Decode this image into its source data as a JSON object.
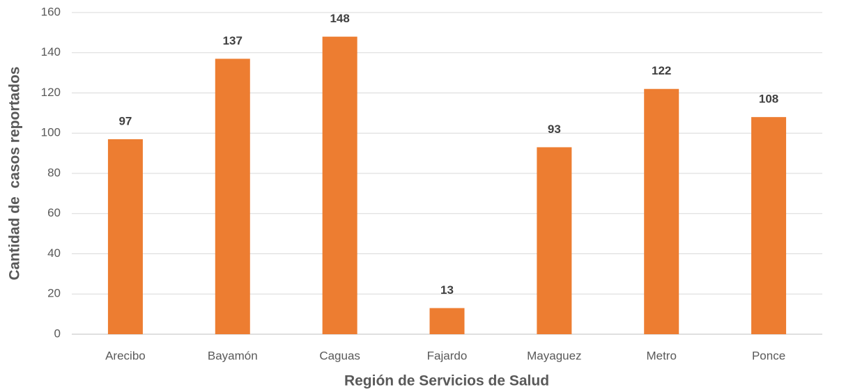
{
  "chart_data": {
    "type": "bar",
    "x_label": "Región de Servicios de Salud",
    "y_label": "Cantidad de  casos reportados",
    "categories": [
      "Arecibo",
      "Bayamón",
      "Caguas",
      "Fajardo",
      "Mayaguez",
      "Metro",
      "Ponce"
    ],
    "values": [
      97,
      137,
      148,
      13,
      93,
      122,
      108
    ],
    "color": "#ed7d31",
    "ylim": [
      0,
      160
    ],
    "yticks": [
      0,
      20,
      40,
      60,
      80,
      100,
      120,
      140,
      160
    ],
    "grid": true
  }
}
